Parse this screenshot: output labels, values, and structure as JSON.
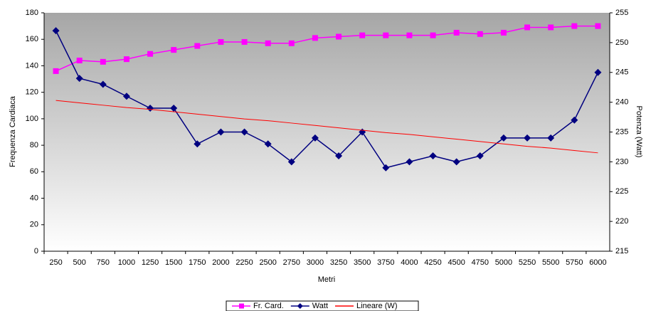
{
  "chart_data": {
    "type": "line",
    "xlabel": "Metri",
    "ylabel": "Frequenza Cardiaca",
    "y2label": "Potenza (Watt)",
    "categories": [
      "250",
      "500",
      "750",
      "1000",
      "1250",
      "1500",
      "1750",
      "2000",
      "2250",
      "2500",
      "2750",
      "3000",
      "3250",
      "3500",
      "3750",
      "4000",
      "4250",
      "4500",
      "4750",
      "5000",
      "5250",
      "5500",
      "5750",
      "6000"
    ],
    "ylim": [
      0,
      180
    ],
    "yticks": [
      0,
      20,
      40,
      60,
      80,
      100,
      120,
      140,
      160,
      180
    ],
    "y2lim": [
      215,
      255
    ],
    "y2ticks": [
      215,
      220,
      225,
      230,
      235,
      240,
      245,
      250,
      255
    ],
    "series": [
      {
        "name": "Fr. Card.",
        "color": "#ff00ff",
        "marker": "square",
        "values": [
          136,
          144,
          143,
          145,
          149,
          152,
          155,
          158,
          158,
          157,
          157,
          161,
          162,
          163,
          163,
          163,
          163,
          165,
          164,
          165,
          169,
          169,
          170,
          170
        ]
      },
      {
        "name": "Watt",
        "color": "#000080",
        "marker": "diamond",
        "axis": "y2",
        "values": [
          252,
          244,
          243,
          241,
          239,
          239,
          233,
          235,
          235,
          233,
          230,
          234,
          231,
          235,
          229,
          230,
          231,
          230,
          231,
          234,
          234,
          234,
          237,
          245
        ]
      },
      {
        "name": "Lineare (W)",
        "color": "#ff0000",
        "marker": "none",
        "axis": "y2",
        "values": [
          240.3,
          239.9,
          239.5,
          239.1,
          238.8,
          238.4,
          238.0,
          237.6,
          237.2,
          236.9,
          236.5,
          236.1,
          235.7,
          235.3,
          234.9,
          234.6,
          234.2,
          233.8,
          233.4,
          233.0,
          232.6,
          232.3,
          231.9,
          231.5
        ]
      }
    ],
    "legend": "bottom"
  }
}
